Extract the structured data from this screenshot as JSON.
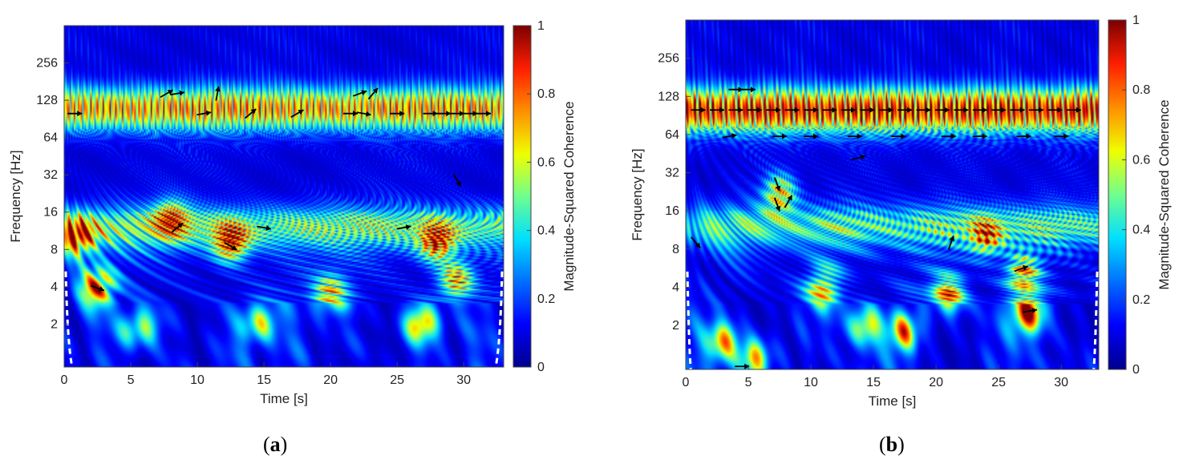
{
  "chart_data": [
    {
      "id": "a",
      "type": "heatmap",
      "caption_open": "(",
      "caption_letter": "a",
      "caption_close": ")",
      "xlabel": "Time [s]",
      "ylabel": "Frequency [Hz]",
      "xlim": [
        0,
        33
      ],
      "ylim_hz": [
        0.9,
        512
      ],
      "x_ticks": [
        0,
        5,
        10,
        15,
        20,
        25,
        30
      ],
      "y_ticks": [
        2,
        4,
        8,
        16,
        32,
        64,
        128,
        256
      ],
      "colorbar": {
        "label": "Magnitude-Squared Coherence",
        "min": 0,
        "max": 1,
        "ticks": [
          0,
          0.2,
          0.4,
          0.6,
          0.8,
          1
        ]
      },
      "bands": [
        {
          "freq_hz": 110,
          "level": 0.75
        },
        {
          "freq_hz": 12,
          "level": 0.45
        }
      ],
      "hotspots": [
        {
          "t": 2.5,
          "f": 4,
          "level": 0.95
        },
        {
          "t": 12.5,
          "f": 9,
          "level": 0.95
        },
        {
          "t": 28,
          "f": 9,
          "level": 0.9
        },
        {
          "t": 1,
          "f": 10,
          "level": 0.8
        },
        {
          "t": 27,
          "f": 2,
          "level": 0.8
        },
        {
          "t": 5.5,
          "f": 1.8,
          "level": 0.75
        },
        {
          "t": 14.5,
          "f": 2,
          "level": 0.75
        },
        {
          "t": 8,
          "f": 14,
          "level": 0.75
        },
        {
          "t": 29.5,
          "f": 4.5,
          "level": 0.8
        },
        {
          "t": 20,
          "f": 3.5,
          "level": 0.7
        }
      ],
      "arrows": [
        {
          "t": 0.8,
          "f": 100,
          "angle": 0
        },
        {
          "t": 7.7,
          "f": 145,
          "angle": 30
        },
        {
          "t": 8.5,
          "f": 145,
          "angle": 10
        },
        {
          "t": 11.5,
          "f": 145,
          "angle": 80
        },
        {
          "t": 10.5,
          "f": 100,
          "angle": 10
        },
        {
          "t": 14,
          "f": 100,
          "angle": 40
        },
        {
          "t": 17.5,
          "f": 100,
          "angle": 30
        },
        {
          "t": 21.5,
          "f": 100,
          "angle": 0
        },
        {
          "t": 22.5,
          "f": 100,
          "angle": -10
        },
        {
          "t": 22.2,
          "f": 145,
          "angle": 20
        },
        {
          "t": 23.2,
          "f": 145,
          "angle": 50
        },
        {
          "t": 25,
          "f": 100,
          "angle": 0
        },
        {
          "t": 27.5,
          "f": 100,
          "angle": 0
        },
        {
          "t": 28.5,
          "f": 100,
          "angle": 0
        },
        {
          "t": 29.5,
          "f": 100,
          "angle": 0
        },
        {
          "t": 30.5,
          "f": 100,
          "angle": 0
        },
        {
          "t": 31.5,
          "f": 100,
          "angle": 0
        },
        {
          "t": 29.5,
          "f": 29,
          "angle": -60
        },
        {
          "t": 8.5,
          "f": 12,
          "angle": 40
        },
        {
          "t": 15,
          "f": 12,
          "angle": -10
        },
        {
          "t": 25.5,
          "f": 12,
          "angle": 10
        },
        {
          "t": 12.5,
          "f": 8.5,
          "angle": -30
        },
        {
          "t": 2.5,
          "f": 3.9,
          "angle": -20
        }
      ],
      "coi": {
        "left_edge_s": 0.6,
        "right_edge_s": 32.4
      }
    },
    {
      "id": "b",
      "type": "heatmap",
      "caption_open": "(",
      "caption_letter": "b",
      "caption_close": ")",
      "xlabel": "Time [s]",
      "ylabel": "Frequency [Hz]",
      "xlim": [
        0,
        33
      ],
      "ylim_hz": [
        0.9,
        512
      ],
      "x_ticks": [
        0,
        5,
        10,
        15,
        20,
        25,
        30
      ],
      "y_ticks": [
        2,
        4,
        8,
        16,
        32,
        64,
        128,
        256
      ],
      "colorbar": {
        "label": "Magnitude-Squared Coherence",
        "min": 0,
        "max": 1,
        "ticks": [
          0,
          0.2,
          0.4,
          0.6,
          0.8,
          1
        ]
      },
      "bands": [
        {
          "freq_hz": 100,
          "level": 0.95
        },
        {
          "freq_hz": 12,
          "level": 0.4
        }
      ],
      "hotspots": [
        {
          "t": 17.5,
          "f": 1.8,
          "level": 0.9
        },
        {
          "t": 27.5,
          "f": 2.5,
          "level": 0.9
        },
        {
          "t": 21,
          "f": 3.5,
          "level": 0.85
        },
        {
          "t": 5.5,
          "f": 1.1,
          "level": 0.85
        },
        {
          "t": 3,
          "f": 1.5,
          "level": 0.7
        },
        {
          "t": 7.5,
          "f": 22,
          "level": 0.75
        },
        {
          "t": 11,
          "f": 4,
          "level": 0.7
        },
        {
          "t": 24,
          "f": 10,
          "level": 0.7
        },
        {
          "t": 27,
          "f": 5,
          "level": 0.75
        },
        {
          "t": 14.5,
          "f": 2,
          "level": 0.6
        }
      ],
      "arrows": [
        {
          "t": 4,
          "f": 145,
          "angle": 0
        },
        {
          "t": 5,
          "f": 145,
          "angle": 0
        },
        {
          "t": 1,
          "f": 100,
          "angle": 0
        },
        {
          "t": 2.5,
          "f": 100,
          "angle": 0
        },
        {
          "t": 4,
          "f": 100,
          "angle": 0
        },
        {
          "t": 5.5,
          "f": 100,
          "angle": 0
        },
        {
          "t": 7,
          "f": 100,
          "angle": 0
        },
        {
          "t": 8.5,
          "f": 100,
          "angle": 0
        },
        {
          "t": 10,
          "f": 100,
          "angle": 0
        },
        {
          "t": 11.5,
          "f": 100,
          "angle": 0
        },
        {
          "t": 13,
          "f": 100,
          "angle": 0
        },
        {
          "t": 14.5,
          "f": 100,
          "angle": 0
        },
        {
          "t": 16,
          "f": 100,
          "angle": 0
        },
        {
          "t": 17.5,
          "f": 100,
          "angle": 0
        },
        {
          "t": 19,
          "f": 100,
          "angle": 0
        },
        {
          "t": 20.5,
          "f": 100,
          "angle": 0
        },
        {
          "t": 22,
          "f": 100,
          "angle": 0
        },
        {
          "t": 23.5,
          "f": 100,
          "angle": 0
        },
        {
          "t": 25,
          "f": 100,
          "angle": 0
        },
        {
          "t": 26.5,
          "f": 100,
          "angle": 0
        },
        {
          "t": 28,
          "f": 100,
          "angle": 0
        },
        {
          "t": 29.5,
          "f": 100,
          "angle": 0
        },
        {
          "t": 31,
          "f": 100,
          "angle": 0
        },
        {
          "t": 3.5,
          "f": 62,
          "angle": 10
        },
        {
          "t": 7.5,
          "f": 62,
          "angle": 0
        },
        {
          "t": 10,
          "f": 62,
          "angle": 0
        },
        {
          "t": 13.5,
          "f": 62,
          "angle": 0
        },
        {
          "t": 17,
          "f": 62,
          "angle": 0
        },
        {
          "t": 21,
          "f": 62,
          "angle": 0
        },
        {
          "t": 23.5,
          "f": 62,
          "angle": 0
        },
        {
          "t": 27,
          "f": 62,
          "angle": 0
        },
        {
          "t": 30,
          "f": 62,
          "angle": 0
        },
        {
          "t": 13.8,
          "f": 42,
          "angle": 15
        },
        {
          "t": 7.3,
          "f": 26,
          "angle": -70
        },
        {
          "t": 7.3,
          "f": 18,
          "angle": -70
        },
        {
          "t": 8.2,
          "f": 19,
          "angle": 60
        },
        {
          "t": 0.8,
          "f": 9,
          "angle": -50
        },
        {
          "t": 21.2,
          "f": 9,
          "angle": 70
        },
        {
          "t": 26.8,
          "f": 5.6,
          "angle": 20
        },
        {
          "t": 27.5,
          "f": 2.6,
          "angle": 10
        },
        {
          "t": 4.5,
          "f": 0.95,
          "angle": 0
        }
      ],
      "coi": {
        "left_edge_s": 0.4,
        "right_edge_s": 32.6
      }
    }
  ],
  "colormap": [
    "#00008f",
    "#0000ff",
    "#0070ff",
    "#00e0ff",
    "#70ff8f",
    "#f0ff00",
    "#ff9000",
    "#ff2000",
    "#800000"
  ]
}
